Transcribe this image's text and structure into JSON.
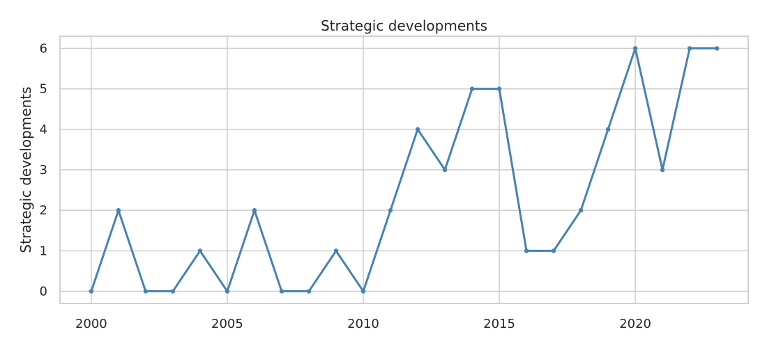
{
  "chart_data": {
    "type": "line",
    "title": "Strategic developments",
    "xlabel": "",
    "ylabel": "Strategic developments",
    "x": [
      2000,
      2001,
      2002,
      2003,
      2004,
      2005,
      2006,
      2007,
      2008,
      2009,
      2010,
      2011,
      2012,
      2013,
      2014,
      2015,
      2016,
      2017,
      2018,
      2019,
      2020,
      2021,
      2022,
      2023
    ],
    "series": [
      {
        "values": [
          0,
          2,
          0,
          0,
          1,
          0,
          2,
          0,
          0,
          1,
          0,
          2,
          4,
          3,
          5,
          5,
          1,
          1,
          2,
          4,
          6,
          3,
          6,
          6
        ],
        "color": "#4682b4"
      }
    ],
    "xlim": [
      1998.85,
      2024.15
    ],
    "ylim": [
      -0.3,
      6.3
    ],
    "xticks": [
      2000,
      2005,
      2010,
      2015,
      2020
    ],
    "yticks": [
      0,
      1,
      2,
      3,
      4,
      5,
      6
    ],
    "grid": true,
    "legend": "none"
  }
}
